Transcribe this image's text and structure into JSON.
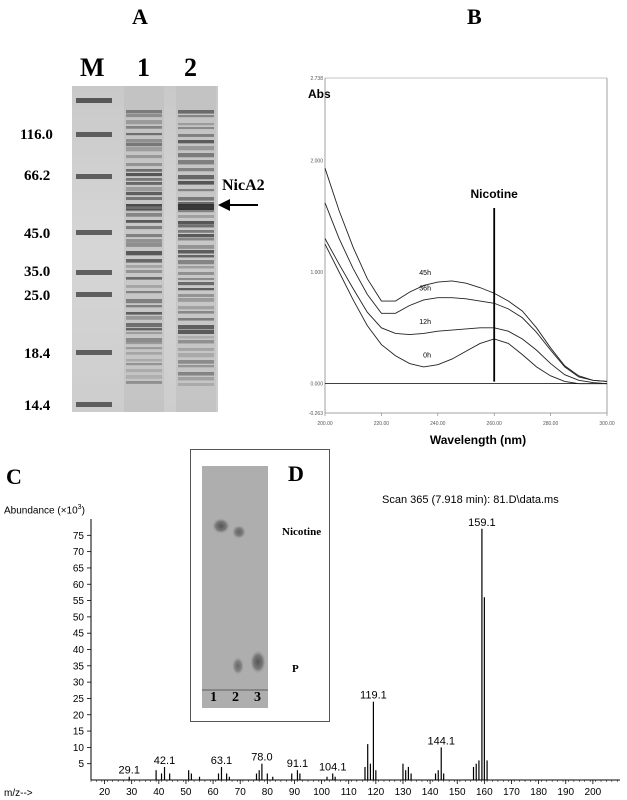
{
  "panel_a": {
    "letter": "A",
    "lanes": [
      "M",
      "1",
      "2"
    ],
    "marker_labels": [
      "116.0",
      "66.2",
      "45.0",
      "35.0",
      "25.0",
      "18.4",
      "14.4"
    ],
    "band_label": "NicA2"
  },
  "panel_b": {
    "letter": "B",
    "chart_data": {
      "type": "line",
      "ylabel": "Abs",
      "xlabel": "Wavelength (nm)",
      "xlim": [
        200,
        300
      ],
      "ylim": [
        -0.263,
        2.738
      ],
      "x_ticks": [
        "200.00",
        "220.00",
        "240.00",
        "260.00",
        "280.00",
        "300.00"
      ],
      "y_ticks": [
        "-0.263",
        "0.000",
        "1.000",
        "2.000",
        "2.738"
      ],
      "annotation": "Nicotine",
      "annotation_x": 260,
      "series": [
        {
          "name": "45h",
          "x": [
            200,
            205,
            210,
            215,
            220,
            225,
            230,
            235,
            240,
            245,
            250,
            255,
            260,
            265,
            270,
            275,
            280,
            285,
            290,
            295,
            300
          ],
          "y": [
            1.93,
            1.55,
            1.22,
            0.94,
            0.74,
            0.74,
            0.82,
            0.88,
            0.91,
            0.92,
            0.9,
            0.86,
            0.81,
            0.74,
            0.65,
            0.5,
            0.32,
            0.16,
            0.07,
            0.03,
            0.02
          ]
        },
        {
          "name": "36h",
          "x": [
            200,
            205,
            210,
            215,
            220,
            225,
            230,
            235,
            240,
            245,
            250,
            255,
            260,
            265,
            270,
            275,
            280,
            285,
            290,
            295,
            300
          ],
          "y": [
            1.62,
            1.3,
            1.03,
            0.8,
            0.63,
            0.63,
            0.7,
            0.75,
            0.77,
            0.77,
            0.76,
            0.74,
            0.72,
            0.67,
            0.59,
            0.46,
            0.3,
            0.15,
            0.06,
            0.03,
            0.02
          ]
        },
        {
          "name": "12h",
          "x": [
            200,
            205,
            210,
            215,
            220,
            225,
            230,
            235,
            240,
            245,
            250,
            255,
            260,
            265,
            270,
            275,
            280,
            285,
            290,
            295,
            300
          ],
          "y": [
            1.3,
            1.07,
            0.85,
            0.64,
            0.5,
            0.45,
            0.44,
            0.45,
            0.47,
            0.48,
            0.49,
            0.5,
            0.5,
            0.47,
            0.4,
            0.3,
            0.18,
            0.08,
            0.03,
            0.01,
            0.0
          ]
        },
        {
          "name": "0h",
          "x": [
            200,
            205,
            210,
            215,
            220,
            225,
            230,
            235,
            240,
            245,
            250,
            255,
            260,
            265,
            270,
            275,
            280,
            285,
            290,
            295,
            300
          ],
          "y": [
            1.25,
            1.0,
            0.75,
            0.52,
            0.35,
            0.25,
            0.18,
            0.15,
            0.17,
            0.22,
            0.29,
            0.36,
            0.4,
            0.36,
            0.26,
            0.15,
            0.07,
            0.02,
            0.0,
            0.0,
            0.0
          ]
        }
      ]
    }
  },
  "panel_c": {
    "letter": "C",
    "chart_data": {
      "type": "bar",
      "ylabel": "Abundance (×10",
      "ylabel_sup": "3",
      "ylabel_close": ")",
      "xlabel": "m/z-->",
      "title": "Scan 365 (7.918 min): 81.D\\data.ms",
      "xlim": [
        15,
        210
      ],
      "ylim": [
        0,
        80
      ],
      "x_ticks": [
        20,
        30,
        40,
        50,
        60,
        70,
        80,
        90,
        100,
        110,
        120,
        130,
        140,
        150,
        160,
        170,
        180,
        190,
        200
      ],
      "y_ticks": [
        5,
        10,
        15,
        20,
        25,
        30,
        35,
        40,
        45,
        50,
        55,
        60,
        65,
        70,
        75
      ],
      "peaks": [
        {
          "mz": 29.1,
          "abundance": 1,
          "label": "29.1"
        },
        {
          "mz": 39.0,
          "abundance": 3,
          "label": ""
        },
        {
          "mz": 41.0,
          "abundance": 2,
          "label": ""
        },
        {
          "mz": 42.1,
          "abundance": 4,
          "label": "42.1"
        },
        {
          "mz": 44.0,
          "abundance": 2,
          "label": ""
        },
        {
          "mz": 51.0,
          "abundance": 3,
          "label": ""
        },
        {
          "mz": 52.0,
          "abundance": 2,
          "label": ""
        },
        {
          "mz": 55.0,
          "abundance": 1,
          "label": ""
        },
        {
          "mz": 62.0,
          "abundance": 2,
          "label": ""
        },
        {
          "mz": 63.1,
          "abundance": 4,
          "label": "63.1"
        },
        {
          "mz": 65.0,
          "abundance": 2,
          "label": ""
        },
        {
          "mz": 66.0,
          "abundance": 1,
          "label": ""
        },
        {
          "mz": 76.0,
          "abundance": 2,
          "label": ""
        },
        {
          "mz": 77.0,
          "abundance": 3,
          "label": ""
        },
        {
          "mz": 78.0,
          "abundance": 5,
          "label": "78.0"
        },
        {
          "mz": 80.0,
          "abundance": 2,
          "label": ""
        },
        {
          "mz": 82.0,
          "abundance": 1,
          "label": ""
        },
        {
          "mz": 89.0,
          "abundance": 2,
          "label": ""
        },
        {
          "mz": 91.1,
          "abundance": 3,
          "label": "91.1"
        },
        {
          "mz": 92.0,
          "abundance": 2,
          "label": ""
        },
        {
          "mz": 102.0,
          "abundance": 1,
          "label": ""
        },
        {
          "mz": 104.1,
          "abundance": 2,
          "label": "104.1"
        },
        {
          "mz": 105.0,
          "abundance": 1,
          "label": ""
        },
        {
          "mz": 116.0,
          "abundance": 4,
          "label": ""
        },
        {
          "mz": 117.0,
          "abundance": 11,
          "label": ""
        },
        {
          "mz": 118.0,
          "abundance": 5,
          "label": ""
        },
        {
          "mz": 119.1,
          "abundance": 24,
          "label": "119.1"
        },
        {
          "mz": 120.0,
          "abundance": 3,
          "label": ""
        },
        {
          "mz": 130.0,
          "abundance": 5,
          "label": ""
        },
        {
          "mz": 131.0,
          "abundance": 3,
          "label": ""
        },
        {
          "mz": 132.0,
          "abundance": 4,
          "label": ""
        },
        {
          "mz": 133.0,
          "abundance": 2,
          "label": ""
        },
        {
          "mz": 142.0,
          "abundance": 2,
          "label": ""
        },
        {
          "mz": 143.0,
          "abundance": 3,
          "label": ""
        },
        {
          "mz": 144.1,
          "abundance": 10,
          "label": "144.1"
        },
        {
          "mz": 145.0,
          "abundance": 2,
          "label": ""
        },
        {
          "mz": 156.0,
          "abundance": 4,
          "label": ""
        },
        {
          "mz": 157.0,
          "abundance": 5,
          "label": ""
        },
        {
          "mz": 158.0,
          "abundance": 6,
          "label": ""
        },
        {
          "mz": 159.1,
          "abundance": 77,
          "label": "159.1"
        },
        {
          "mz": 160.0,
          "abundance": 56,
          "label": ""
        },
        {
          "mz": 161.0,
          "abundance": 6,
          "label": ""
        }
      ]
    }
  },
  "panel_d": {
    "letter": "D",
    "spot_labels": [
      "Nicotine",
      "P"
    ],
    "lane_numbers": [
      "1",
      "2",
      "3"
    ]
  }
}
